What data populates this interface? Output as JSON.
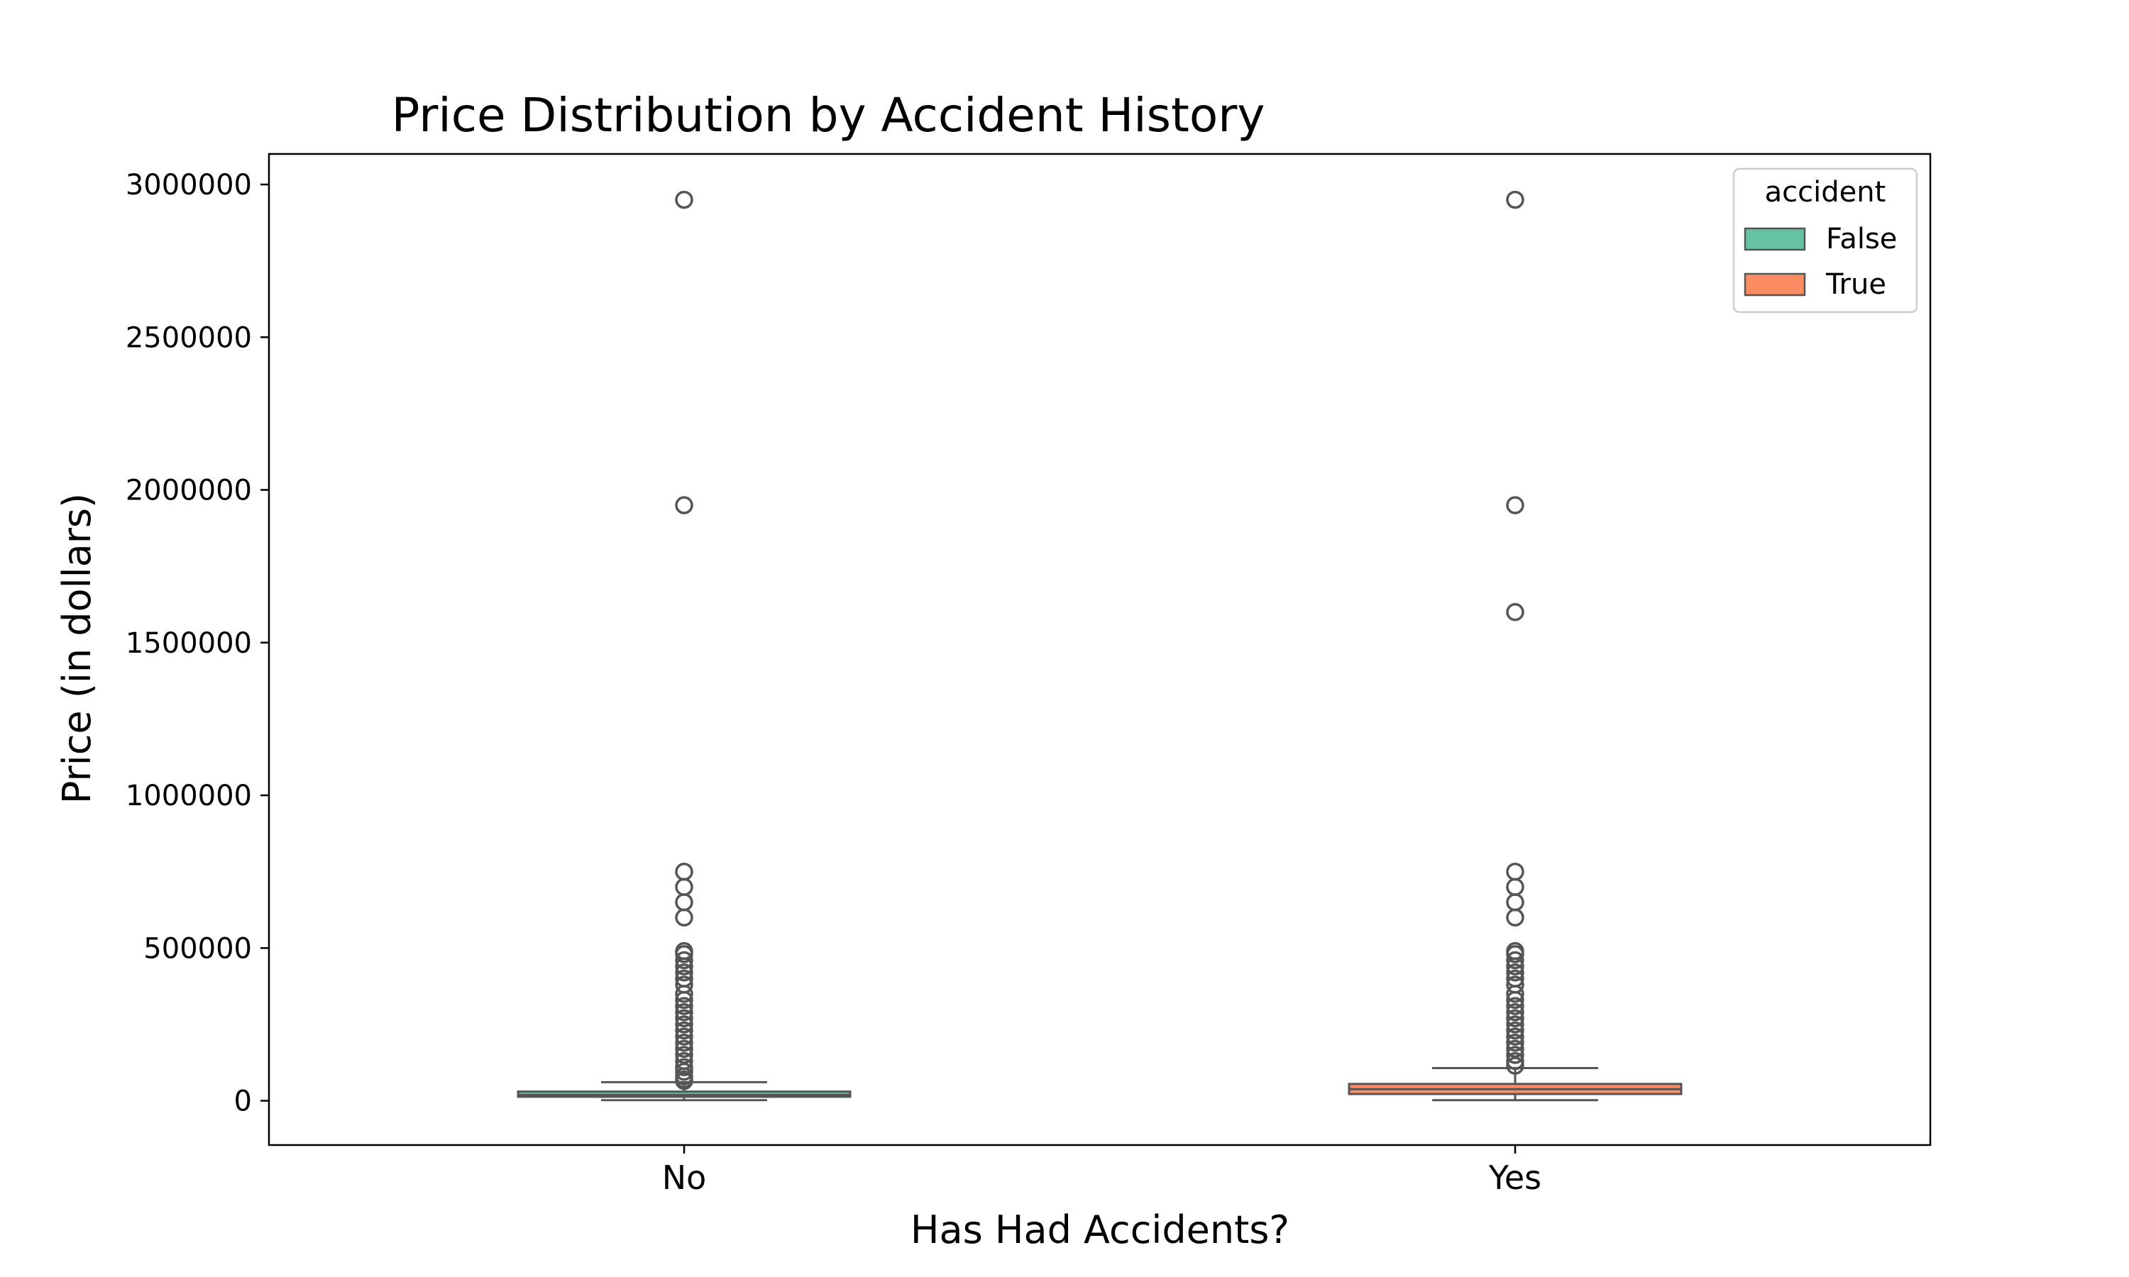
{
  "chart_data": {
    "type": "box",
    "title": "Price Distribution by Accident History",
    "xlabel": "Has Had Accidents?",
    "ylabel": "Price (in dollars)",
    "categories": [
      "No",
      "Yes"
    ],
    "ylim": [
      -145000,
      3100000
    ],
    "yticks": [
      0,
      500000,
      1000000,
      1500000,
      2000000,
      2500000,
      3000000
    ],
    "ytick_labels": [
      "0",
      "500000",
      "1000000",
      "1500000",
      "2000000",
      "2500000",
      "3000000"
    ],
    "grid": false,
    "legend": {
      "title": "accident",
      "position": "top-right",
      "entries": [
        {
          "label": "False",
          "color": "#66c2a5"
        },
        {
          "label": "True",
          "color": "#fc8d62"
        }
      ]
    },
    "series": [
      {
        "name": "False",
        "category": "No",
        "color": "#66c2a5",
        "box": {
          "whislo": 2000,
          "q1": 13000,
          "median": 19000,
          "q3": 30000,
          "whishi": 61000
        },
        "outliers": [
          2950000,
          1950000,
          750000,
          700000,
          650000,
          600000,
          490000,
          480000,
          460000,
          440000,
          420000,
          400000,
          380000,
          350000,
          330000,
          310000,
          290000,
          270000,
          250000,
          230000,
          210000,
          190000,
          170000,
          150000,
          130000,
          110000,
          95000,
          80000,
          70000,
          65000
        ]
      },
      {
        "name": "True",
        "category": "Yes",
        "color": "#fc8d62",
        "box": {
          "whislo": 2000,
          "q1": 22000,
          "median": 38000,
          "q3": 55000,
          "whishi": 107000
        },
        "outliers": [
          2950000,
          1950000,
          1600000,
          750000,
          700000,
          650000,
          600000,
          490000,
          480000,
          460000,
          440000,
          420000,
          400000,
          380000,
          350000,
          330000,
          310000,
          290000,
          270000,
          250000,
          230000,
          210000,
          190000,
          170000,
          150000,
          130000,
          115000
        ]
      }
    ]
  }
}
